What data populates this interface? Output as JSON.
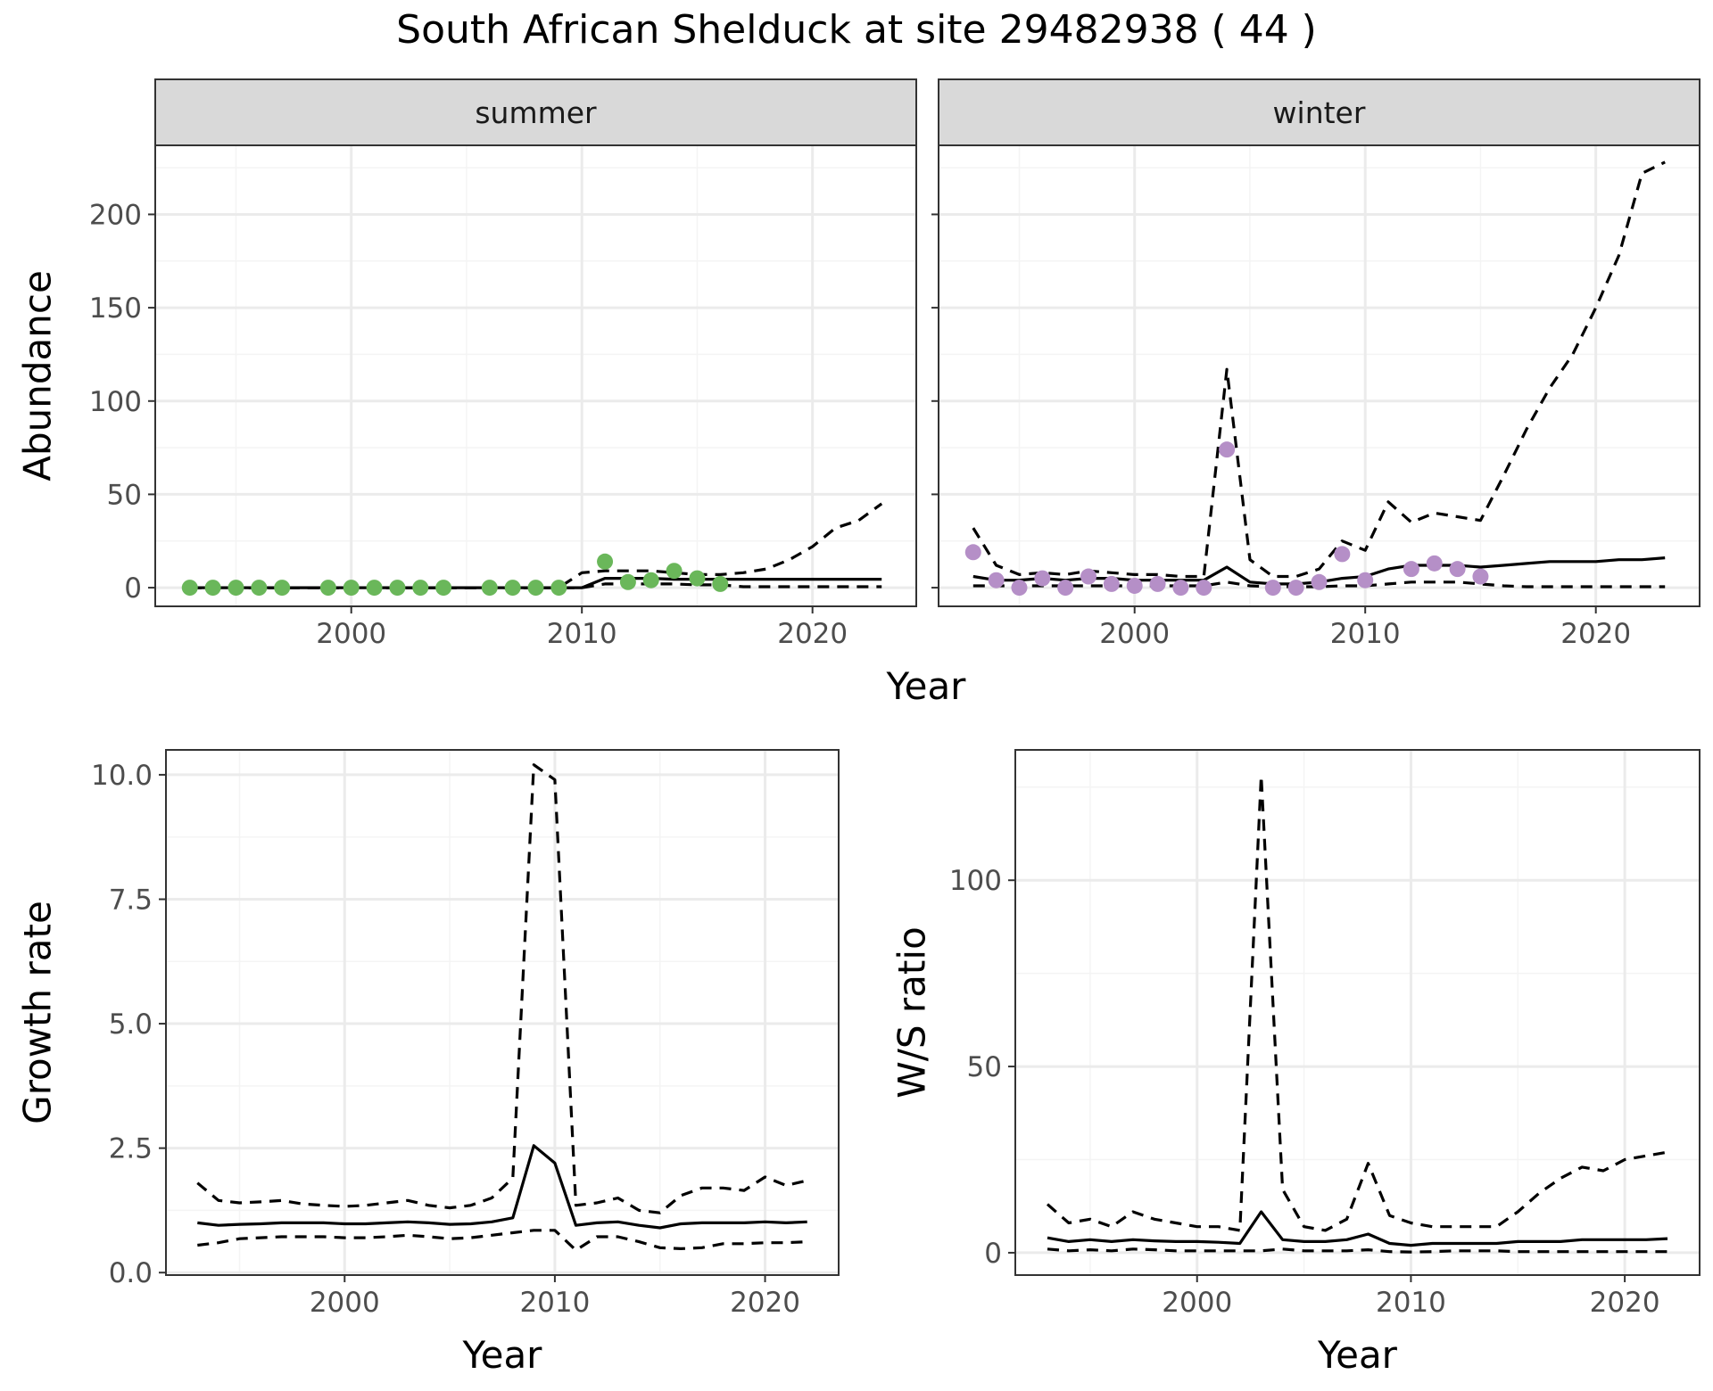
{
  "title": "South African Shelduck at site 29482938 ( 44 )",
  "colors": {
    "summer_points": "#6ab75a",
    "winter_points": "#b58fc7",
    "line": "#000000",
    "strip_fill": "#d9d9d9",
    "grid_major": "#ebebeb",
    "grid_minor": "#f4f4f4",
    "tick_text": "#4d4d4d"
  },
  "chart_data": [
    {
      "id": "summer",
      "type": "line",
      "strip_label": "summer",
      "ylabel": "Abundance",
      "xlabel": "Year",
      "xlim": [
        1991.5,
        2024.5
      ],
      "ylim": [
        -10,
        237
      ],
      "xticks": [
        2000,
        2010,
        2020
      ],
      "yticks": [
        0,
        50,
        100,
        150,
        200
      ],
      "x": [
        1993,
        1994,
        1995,
        1996,
        1997,
        1998,
        1999,
        2000,
        2001,
        2002,
        2003,
        2004,
        2005,
        2006,
        2007,
        2008,
        2009,
        2010,
        2011,
        2012,
        2013,
        2014,
        2015,
        2016,
        2017,
        2018,
        2019,
        2020,
        2021,
        2022,
        2023
      ],
      "series": [
        {
          "role": "estimate",
          "style": "solid",
          "values": [
            0,
            0,
            0,
            0,
            0,
            0,
            0,
            0,
            0,
            0,
            0,
            0,
            0,
            0,
            0,
            0,
            0,
            0,
            5,
            5,
            5,
            4.5,
            4.5,
            4.5,
            4.5,
            4.5,
            4.5,
            4.5,
            4.5,
            4.5,
            4.5
          ]
        },
        {
          "role": "upper",
          "style": "dashed",
          "values": [
            0,
            0,
            0,
            0,
            0,
            0,
            0,
            0,
            0,
            0,
            0,
            0,
            0,
            0,
            0,
            0,
            0,
            8,
            9,
            9,
            9,
            8,
            7,
            7,
            8,
            10,
            15,
            22,
            32,
            36,
            45
          ]
        },
        {
          "role": "lower",
          "style": "dashed",
          "values": [
            0,
            0,
            0,
            0,
            0,
            0,
            0,
            0,
            0,
            0,
            0,
            0,
            0,
            0,
            0,
            0,
            0,
            0,
            2,
            2,
            2,
            2,
            1.5,
            1.5,
            0.5,
            0.5,
            0.5,
            0.5,
            0.5,
            0.5,
            0.5
          ]
        }
      ],
      "points": {
        "x": [
          1993,
          1994,
          1995,
          1996,
          1997,
          1999,
          2000,
          2001,
          2002,
          2003,
          2004,
          2006,
          2007,
          2008,
          2009,
          2011,
          2012,
          2013,
          2014,
          2015,
          2016
        ],
        "y": [
          0,
          0,
          0,
          0,
          0,
          0,
          0,
          0,
          0,
          0,
          0,
          0,
          0,
          0,
          0,
          14,
          3,
          4,
          9,
          5,
          2
        ]
      }
    },
    {
      "id": "winter",
      "type": "line",
      "strip_label": "winter",
      "xlabel": "Year",
      "xlim": [
        1991.5,
        2024.5
      ],
      "ylim": [
        -10,
        237
      ],
      "xticks": [
        2000,
        2010,
        2020
      ],
      "yticks": [
        0,
        50,
        100,
        150,
        200
      ],
      "x": [
        1993,
        1994,
        1995,
        1996,
        1997,
        1998,
        1999,
        2000,
        2001,
        2002,
        2003,
        2004,
        2005,
        2006,
        2007,
        2008,
        2009,
        2010,
        2011,
        2012,
        2013,
        2014,
        2015,
        2016,
        2017,
        2018,
        2019,
        2020,
        2021,
        2022,
        2023
      ],
      "series": [
        {
          "role": "estimate",
          "style": "solid",
          "values": [
            6,
            4,
            4,
            5,
            4,
            5,
            5,
            4,
            4,
            4,
            4,
            11,
            3,
            2,
            2,
            3,
            5,
            6,
            10,
            12,
            12,
            12,
            11,
            12,
            13,
            14,
            14,
            14,
            15,
            15,
            16
          ]
        },
        {
          "role": "upper",
          "style": "dashed",
          "values": [
            32,
            12,
            7,
            8,
            7,
            9,
            8,
            7,
            7,
            6,
            6,
            117,
            15,
            6,
            6,
            10,
            25,
            20,
            46,
            35,
            40,
            38,
            36,
            60,
            85,
            107,
            125,
            150,
            178,
            222,
            228
          ]
        },
        {
          "role": "lower",
          "style": "dashed",
          "values": [
            1,
            1,
            1,
            1,
            1,
            1,
            1,
            1,
            1,
            1,
            1,
            3,
            1,
            0.5,
            0.5,
            0.5,
            1,
            1,
            2,
            3,
            3,
            3,
            2,
            1,
            0.5,
            0.5,
            0.5,
            0.5,
            0.5,
            0.5,
            0.5
          ]
        }
      ],
      "points": {
        "x": [
          1993,
          1994,
          1995,
          1996,
          1997,
          1998,
          1999,
          2000,
          2001,
          2002,
          2003,
          2004,
          2006,
          2007,
          2008,
          2009,
          2010,
          2012,
          2013,
          2014,
          2015
        ],
        "y": [
          19,
          4,
          0,
          5,
          0,
          6,
          2,
          1,
          2,
          0,
          0,
          74,
          0,
          0,
          3,
          18,
          4,
          10,
          13,
          10,
          6
        ]
      }
    },
    {
      "id": "growth",
      "type": "line",
      "ylabel": "Growth rate",
      "xlabel": "Year",
      "xlim": [
        1991.5,
        2023.5
      ],
      "ylim": [
        -0.05,
        10.5
      ],
      "xticks": [
        2000,
        2010,
        2020
      ],
      "yticks": [
        0.0,
        2.5,
        5.0,
        7.5,
        10.0
      ],
      "ytick_labels": [
        "0.0",
        "2.5",
        "5.0",
        "7.5",
        "10.0"
      ],
      "x": [
        1993,
        1994,
        1995,
        1996,
        1997,
        1998,
        1999,
        2000,
        2001,
        2002,
        2003,
        2004,
        2005,
        2006,
        2007,
        2008,
        2009,
        2010,
        2011,
        2012,
        2013,
        2014,
        2015,
        2016,
        2017,
        2018,
        2019,
        2020,
        2021,
        2022
      ],
      "series": [
        {
          "role": "estimate",
          "style": "solid",
          "values": [
            1.0,
            0.95,
            0.97,
            0.98,
            1.0,
            1.0,
            1.0,
            0.98,
            0.98,
            1.0,
            1.02,
            1.0,
            0.97,
            0.98,
            1.02,
            1.1,
            2.55,
            2.2,
            0.95,
            1.0,
            1.02,
            0.95,
            0.9,
            0.98,
            1.0,
            1.0,
            1.0,
            1.02,
            1.0,
            1.02
          ]
        },
        {
          "role": "upper",
          "style": "dashed",
          "values": [
            1.8,
            1.45,
            1.4,
            1.42,
            1.45,
            1.38,
            1.35,
            1.33,
            1.35,
            1.4,
            1.45,
            1.35,
            1.3,
            1.35,
            1.5,
            1.9,
            10.2,
            9.9,
            1.35,
            1.4,
            1.5,
            1.25,
            1.2,
            1.55,
            1.7,
            1.7,
            1.65,
            1.92,
            1.75,
            1.85
          ]
        },
        {
          "role": "lower",
          "style": "dashed",
          "values": [
            0.55,
            0.6,
            0.68,
            0.7,
            0.72,
            0.72,
            0.72,
            0.7,
            0.7,
            0.72,
            0.75,
            0.72,
            0.68,
            0.7,
            0.75,
            0.8,
            0.85,
            0.85,
            0.45,
            0.72,
            0.72,
            0.62,
            0.5,
            0.48,
            0.5,
            0.58,
            0.58,
            0.6,
            0.6,
            0.62
          ]
        }
      ]
    },
    {
      "id": "ws_ratio",
      "type": "line",
      "ylabel": "W/S ratio",
      "xlabel": "Year",
      "xlim": [
        1991.5,
        2023.5
      ],
      "ylim": [
        -6,
        135
      ],
      "xticks": [
        2000,
        2010,
        2020
      ],
      "yticks": [
        0,
        50,
        100
      ],
      "x": [
        1993,
        1994,
        1995,
        1996,
        1997,
        1998,
        1999,
        2000,
        2001,
        2002,
        2003,
        2004,
        2005,
        2006,
        2007,
        2008,
        2009,
        2010,
        2011,
        2012,
        2013,
        2014,
        2015,
        2016,
        2017,
        2018,
        2019,
        2020,
        2021,
        2022
      ],
      "series": [
        {
          "role": "estimate",
          "style": "solid",
          "values": [
            4,
            3,
            3.5,
            3,
            3.5,
            3.2,
            3,
            3,
            2.8,
            2.5,
            11,
            3.5,
            3,
            3,
            3.5,
            5,
            2.5,
            2,
            2.5,
            2.5,
            2.5,
            2.5,
            3,
            3,
            3,
            3.5,
            3.5,
            3.5,
            3.5,
            3.8
          ]
        },
        {
          "role": "upper",
          "style": "dashed",
          "values": [
            13,
            8,
            9,
            7,
            11,
            9,
            8,
            7,
            7,
            6,
            128,
            17,
            7,
            6,
            9,
            24,
            10,
            8,
            7,
            7,
            7,
            7,
            11,
            16,
            20,
            23,
            22,
            25,
            26,
            27
          ]
        },
        {
          "role": "lower",
          "style": "dashed",
          "values": [
            1,
            0.5,
            0.8,
            0.5,
            1,
            0.8,
            0.5,
            0.5,
            0.5,
            0.5,
            0.5,
            1,
            0.5,
            0.5,
            0.5,
            0.8,
            0.3,
            0.2,
            0.3,
            0.5,
            0.5,
            0.5,
            0.3,
            0.3,
            0.3,
            0.3,
            0.3,
            0.3,
            0.3,
            0.3
          ]
        }
      ]
    }
  ]
}
